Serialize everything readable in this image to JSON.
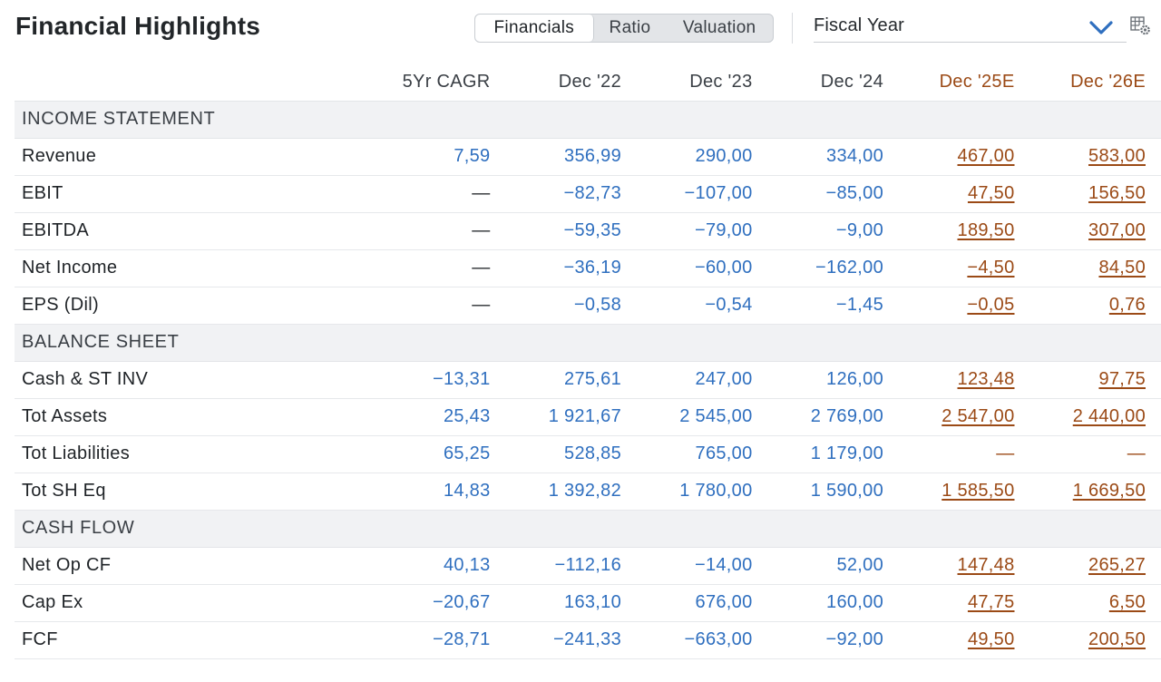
{
  "header": {
    "title": "Financial Highlights",
    "tabs": [
      {
        "label": "Financials",
        "active": true
      },
      {
        "label": "Ratio",
        "active": false
      },
      {
        "label": "Valuation",
        "active": false
      }
    ],
    "period_select": {
      "value": "Fiscal Year",
      "icon": "chevron-down-icon"
    },
    "settings_icon": "table-settings-gear-icon"
  },
  "colors": {
    "actual_value": "#2f6fbf",
    "estimate_value": "#9b4a16",
    "section_bg": "#f1f2f4"
  },
  "table": {
    "columns": [
      {
        "label": "5Yr CAGR",
        "estimate": false
      },
      {
        "label": "Dec '22",
        "estimate": false
      },
      {
        "label": "Dec '23",
        "estimate": false
      },
      {
        "label": "Dec '24",
        "estimate": false
      },
      {
        "label": "Dec '25E",
        "estimate": true
      },
      {
        "label": "Dec '26E",
        "estimate": true
      }
    ],
    "sections": [
      {
        "title": "INCOME STATEMENT",
        "rows": [
          {
            "label": "Revenue",
            "values": [
              "7,59",
              "356,99",
              "290,00",
              "334,00",
              "467,00",
              "583,00"
            ]
          },
          {
            "label": "EBIT",
            "values": [
              "—",
              "−82,73",
              "−107,00",
              "−85,00",
              "47,50",
              "156,50"
            ]
          },
          {
            "label": "EBITDA",
            "values": [
              "—",
              "−59,35",
              "−79,00",
              "−9,00",
              "189,50",
              "307,00"
            ]
          },
          {
            "label": "Net Income",
            "values": [
              "—",
              "−36,19",
              "−60,00",
              "−162,00",
              "−4,50",
              "84,50"
            ]
          },
          {
            "label": "EPS (Dil)",
            "values": [
              "—",
              "−0,58",
              "−0,54",
              "−1,45",
              "−0,05",
              "0,76"
            ]
          }
        ]
      },
      {
        "title": "BALANCE SHEET",
        "rows": [
          {
            "label": "Cash & ST INV",
            "values": [
              "−13,31",
              "275,61",
              "247,00",
              "126,00",
              "123,48",
              "97,75"
            ]
          },
          {
            "label": "Tot Assets",
            "values": [
              "25,43",
              "1 921,67",
              "2 545,00",
              "2 769,00",
              "2 547,00",
              "2 440,00"
            ]
          },
          {
            "label": "Tot Liabilities",
            "values": [
              "65,25",
              "528,85",
              "765,00",
              "1 179,00",
              "—",
              "—"
            ]
          },
          {
            "label": "Tot SH Eq",
            "values": [
              "14,83",
              "1 392,82",
              "1 780,00",
              "1 590,00",
              "1 585,50",
              "1 669,50"
            ]
          }
        ]
      },
      {
        "title": "CASH FLOW",
        "rows": [
          {
            "label": "Net Op CF",
            "values": [
              "40,13",
              "−112,16",
              "−14,00",
              "52,00",
              "147,48",
              "265,27"
            ]
          },
          {
            "label": "Cap Ex",
            "values": [
              "−20,67",
              "163,10",
              "676,00",
              "160,00",
              "47,75",
              "6,50"
            ]
          },
          {
            "label": "FCF",
            "values": [
              "−28,71",
              "−241,33",
              "−663,00",
              "−92,00",
              "49,50",
              "200,50"
            ]
          }
        ]
      }
    ]
  }
}
